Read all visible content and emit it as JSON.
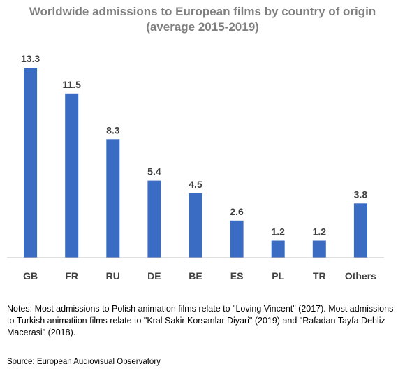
{
  "chart_data": {
    "type": "bar",
    "title_lines": [
      "Worldwide admissions to European films by country of origin",
      "(average 2015-2019)"
    ],
    "categories": [
      "GB",
      "FR",
      "RU",
      "DE",
      "BE",
      "ES",
      "PL",
      "TR",
      "Others"
    ],
    "values": [
      13.3,
      11.5,
      8.3,
      5.4,
      4.5,
      2.6,
      1.2,
      1.2,
      3.8
    ],
    "value_labels": [
      "13.3",
      "11.5",
      "8.3",
      "5.4",
      "4.5",
      "2.6",
      "1.2",
      "1.2",
      "3.8"
    ],
    "xlabel": "",
    "ylabel": "",
    "ylim": [
      0,
      13.3
    ],
    "grid": false,
    "legend": "none",
    "bar_color": "#3b6cc4",
    "title_color": "#7f7f7f",
    "axis_color": "#bfbfbf"
  },
  "notes": "Notes: Most admissions to Polish animation films relate to \"Loving Vincent\" (2017). Most admissions to Turkish animatiion films relate to \"Kral Sakir Korsanlar Diyari\" (2019) and \"Rafadan Tayfa Dehliz Macerasi\" (2018).",
  "source": "Source: European Audiovisual Observatory"
}
